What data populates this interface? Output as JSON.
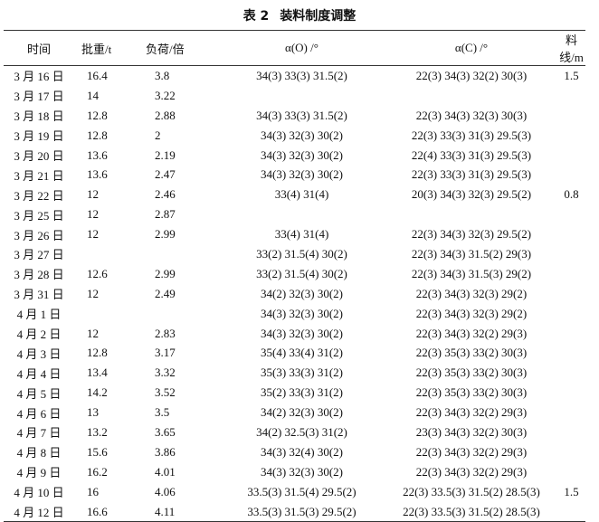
{
  "caption": {
    "number": "表 2",
    "title": "装料制度调整"
  },
  "headers": [
    "时间",
    "批重/t",
    "负荷/倍",
    "α(O) /°",
    "α(C) /°",
    "料线/m"
  ],
  "rows": [
    [
      "3 月 16 日",
      "16.4",
      "3.8",
      "34(3) 33(3) 31.5(2)",
      "22(3) 34(3) 32(2) 30(3)",
      "1.5"
    ],
    [
      "3 月 17 日",
      "14",
      "3.22",
      "",
      "",
      ""
    ],
    [
      "3 月 18 日",
      "12.8",
      "2.88",
      "34(3) 33(3) 31.5(2)",
      "22(3) 34(3) 32(3) 30(3)",
      ""
    ],
    [
      "3 月 19 日",
      "12.8",
      "2",
      "34(3) 32(3) 30(2)",
      "22(3) 33(3) 31(3) 29.5(3)",
      ""
    ],
    [
      "3 月 20 日",
      "13.6",
      "2.19",
      "34(3) 32(3) 30(2)",
      "22(4) 33(3) 31(3) 29.5(3)",
      ""
    ],
    [
      "3 月 21 日",
      "13.6",
      "2.47",
      "34(3) 32(3) 30(2)",
      "22(3) 33(3) 31(3) 29.5(3)",
      ""
    ],
    [
      "3 月 22 日",
      "12",
      "2.46",
      "33(4) 31(4)",
      "20(3) 34(3) 32(3) 29.5(2)",
      "0.8"
    ],
    [
      "3 月 25 日",
      "12",
      "2.87",
      "",
      "",
      ""
    ],
    [
      "3 月 26 日",
      "12",
      "2.99",
      "33(4) 31(4)",
      "22(3) 34(3) 32(3) 29.5(2)",
      ""
    ],
    [
      "3 月 27 日",
      "",
      "",
      "33(2) 31.5(4) 30(2)",
      "22(3) 34(3) 31.5(2) 29(3)",
      ""
    ],
    [
      "3 月 28 日",
      "12.6",
      "2.99",
      "33(2) 31.5(4) 30(2)",
      "22(3) 34(3) 31.5(3) 29(2)",
      ""
    ],
    [
      "3 月 31 日",
      "12",
      "2.49",
      "34(2) 32(3) 30(2)",
      "22(3) 34(3) 32(3) 29(2)",
      ""
    ],
    [
      "4 月 1 日",
      "",
      "",
      "34(3) 32(3) 30(2)",
      "22(3) 34(3) 32(3) 29(2)",
      ""
    ],
    [
      "4 月 2 日",
      "12",
      "2.83",
      "34(3) 32(3) 30(2)",
      "22(3) 34(3) 32(2) 29(3)",
      ""
    ],
    [
      "4 月 3 日",
      "12.8",
      "3.17",
      "35(4) 33(4) 31(2)",
      "22(3) 35(3) 33(2) 30(3)",
      ""
    ],
    [
      "4 月 4 日",
      "13.4",
      "3.32",
      "35(3) 33(3) 31(2)",
      "22(3) 35(3) 33(2) 30(3)",
      ""
    ],
    [
      "4 月 5 日",
      "14.2",
      "3.52",
      "35(2) 33(3) 31(2)",
      "22(3) 35(3) 33(2) 30(3)",
      ""
    ],
    [
      "4 月 6 日",
      "13",
      "3.5",
      "34(2) 32(3) 30(2)",
      "22(3) 34(3) 32(2) 29(3)",
      ""
    ],
    [
      "4 月 7 日",
      "13.2",
      "3.65",
      "34(2) 32.5(3) 31(2)",
      "23(3) 34(3) 32(2) 30(3)",
      ""
    ],
    [
      "4 月 8 日",
      "15.6",
      "3.86",
      "34(3) 32(4) 30(2)",
      "22(3) 34(3) 32(2) 29(3)",
      ""
    ],
    [
      "4 月 9 日",
      "16.2",
      "4.01",
      "34(3) 32(3) 30(2)",
      "22(3) 34(3) 32(2) 29(3)",
      ""
    ],
    [
      "4 月 10 日",
      "16",
      "4.06",
      "33.5(3) 31.5(4) 29.5(2)",
      "22(3) 33.5(3) 31.5(2) 28.5(3)",
      "1.5"
    ],
    [
      "4 月 12 日",
      "16.6",
      "4.11",
      "33.5(3) 31.5(3) 29.5(2)",
      "22(3) 33.5(3) 31.5(2) 28.5(3)",
      ""
    ]
  ]
}
